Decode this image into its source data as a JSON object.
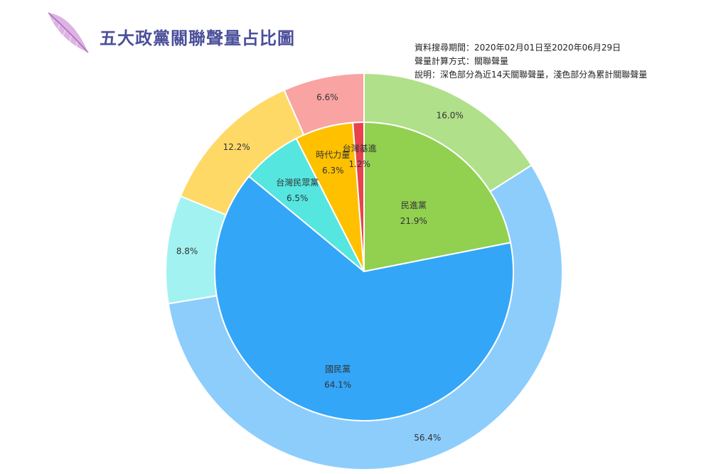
{
  "title": "五大政黨關聯聲量占比圖",
  "info": {
    "period": "資料搜尋期間：2020年02月01日至2020年06月29日",
    "method": "聲量計算方式：關聯聲量",
    "note": "說明：深色部分為近14天關聯聲量，淺色部分為累計關聯聲量"
  },
  "logo_icon": "feather-icon",
  "chart_data": {
    "type": "pie",
    "title": "五大政黨關聯聲量占比圖",
    "inner": {
      "description": "近14天關聯聲量",
      "slices": [
        {
          "name": "民進黨",
          "value": 21.9,
          "label": "21.9%",
          "color": "#92d050"
        },
        {
          "name": "國民黨",
          "value": 64.1,
          "label": "64.1%",
          "color": "#33a6f8"
        },
        {
          "name": "台灣民眾黨",
          "value": 6.5,
          "label": "6.5%",
          "color": "#55e6e0"
        },
        {
          "name": "時代力量",
          "value": 6.3,
          "label": "6.3%",
          "color": "#ffc000"
        },
        {
          "name": "台灣基進",
          "value": 1.2,
          "label": "1.2%",
          "color": "#e8434c"
        }
      ]
    },
    "outer": {
      "description": "累計關聯聲量",
      "slices": [
        {
          "name": "民進黨",
          "value": 16.0,
          "label": "16.0%",
          "color": "#b0e08a"
        },
        {
          "name": "國民黨",
          "value": 56.4,
          "label": "56.4%",
          "color": "#8ccdfc"
        },
        {
          "name": "台灣民眾黨",
          "value": 8.8,
          "label": "8.8%",
          "color": "#a3f2f2"
        },
        {
          "name": "時代力量",
          "value": 12.2,
          "label": "12.2%",
          "color": "#ffd966"
        },
        {
          "name": "台灣基進",
          "value": 6.6,
          "label": "6.6%",
          "color": "#f9a3a3"
        }
      ]
    }
  }
}
